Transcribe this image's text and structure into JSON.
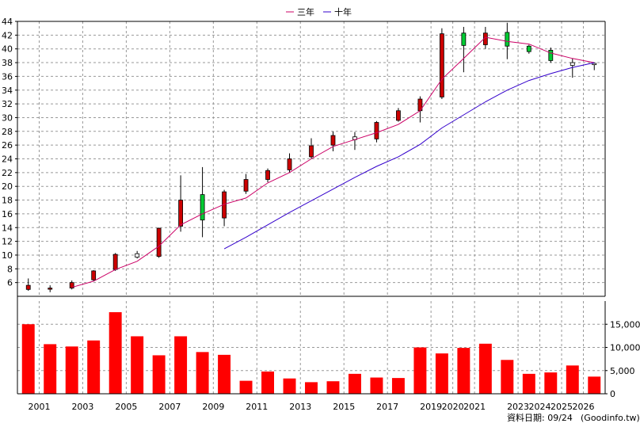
{
  "chart_data": {
    "type": "candlestick+bar",
    "x_years": [
      "2000",
      "2001",
      "2002",
      "2003",
      "2004",
      "2005",
      "2006",
      "2007",
      "2008",
      "2009",
      "2010",
      "2011",
      "2012",
      "2013",
      "2014",
      "2015",
      "2016",
      "2017",
      "2018",
      "2019",
      "2020",
      "2021",
      "2022",
      "2023",
      "2024",
      "2025",
      "2026"
    ],
    "x_tick_labels": [
      "2001",
      "2003",
      "2005",
      "2007",
      "2009",
      "2011",
      "2013",
      "2015",
      "2017",
      "2019",
      "2020",
      "2021",
      "2023",
      "2024",
      "2025",
      "2026"
    ],
    "price_axis": {
      "min": 4,
      "max": 44,
      "ticks": [
        6,
        8,
        10,
        12,
        14,
        16,
        18,
        20,
        22,
        24,
        26,
        28,
        30,
        32,
        34,
        36,
        38,
        40,
        42,
        44
      ],
      "side": "left"
    },
    "volume_axis": {
      "min": 0,
      "max": 20000,
      "ticks": [
        0,
        5000,
        10000,
        15000
      ],
      "tick_labels": [
        "0",
        "5,000",
        "10,000",
        "15,000"
      ],
      "side": "right"
    },
    "legend": {
      "position": "top-center",
      "items": [
        {
          "name": "三年",
          "color": "#cc0066"
        },
        {
          "name": "十年",
          "color": "#3300cc"
        }
      ]
    },
    "candles": [
      {
        "year": "2000",
        "open": 5.6,
        "close": 5.0,
        "high": 6.6,
        "low": 4.8,
        "color": "red"
      },
      {
        "year": "2001",
        "open": 5.2,
        "close": 5.1,
        "high": 5.6,
        "low": 4.6,
        "color": "red"
      },
      {
        "year": "2002",
        "open": 5.2,
        "close": 6.0,
        "high": 6.3,
        "low": 5.0,
        "color": "red"
      },
      {
        "year": "2003",
        "open": 6.4,
        "close": 7.7,
        "high": 7.8,
        "low": 6.2,
        "color": "red"
      },
      {
        "year": "2004",
        "open": 7.9,
        "close": 10.1,
        "high": 10.3,
        "low": 7.7,
        "color": "red"
      },
      {
        "year": "2005",
        "open": 9.7,
        "close": 10.2,
        "high": 10.6,
        "low": 9.5,
        "color": "white"
      },
      {
        "year": "2006",
        "open": 9.8,
        "close": 13.9,
        "high": 14.0,
        "low": 9.6,
        "color": "red"
      },
      {
        "year": "2007",
        "open": 14.2,
        "close": 18.0,
        "high": 21.6,
        "low": 13.4,
        "color": "red"
      },
      {
        "year": "2008",
        "open": 18.8,
        "close": 15.1,
        "high": 22.8,
        "low": 12.6,
        "color": "green"
      },
      {
        "year": "2009",
        "open": 15.4,
        "close": 19.2,
        "high": 19.5,
        "low": 14.2,
        "color": "red"
      },
      {
        "year": "2010",
        "open": 19.3,
        "close": 21.0,
        "high": 21.8,
        "low": 18.9,
        "color": "red"
      },
      {
        "year": "2011",
        "open": 21.0,
        "close": 22.3,
        "high": 22.6,
        "low": 20.6,
        "color": "red"
      },
      {
        "year": "2012",
        "open": 22.4,
        "close": 24.0,
        "high": 24.8,
        "low": 22.0,
        "color": "red"
      },
      {
        "year": "2013",
        "open": 24.3,
        "close": 25.9,
        "high": 27.0,
        "low": 24.0,
        "color": "red"
      },
      {
        "year": "2014",
        "open": 26.0,
        "close": 27.4,
        "high": 28.0,
        "low": 25.1,
        "color": "red"
      },
      {
        "year": "2015",
        "open": 26.8,
        "close": 27.2,
        "high": 27.9,
        "low": 25.3,
        "color": "white"
      },
      {
        "year": "2016",
        "open": 26.9,
        "close": 29.3,
        "high": 29.5,
        "low": 26.4,
        "color": "red"
      },
      {
        "year": "2017",
        "open": 29.6,
        "close": 31.0,
        "high": 31.4,
        "low": 29.4,
        "color": "red"
      },
      {
        "year": "2018",
        "open": 31.0,
        "close": 32.7,
        "high": 33.1,
        "low": 29.3,
        "color": "red"
      },
      {
        "year": "2019",
        "open": 33.0,
        "close": 42.2,
        "high": 43.0,
        "low": 32.7,
        "color": "red"
      },
      {
        "year": "2020",
        "open": 42.3,
        "close": 40.5,
        "high": 43.2,
        "low": 36.6,
        "color": "green"
      },
      {
        "year": "2021",
        "open": 40.6,
        "close": 42.3,
        "high": 43.2,
        "low": 40.0,
        "color": "red"
      },
      {
        "year": "2022",
        "open": 42.4,
        "close": 40.4,
        "high": 43.8,
        "low": 38.5,
        "color": "green"
      },
      {
        "year": "2023",
        "open": 40.4,
        "close": 39.6,
        "high": 40.6,
        "low": 39.3,
        "color": "green"
      },
      {
        "year": "2024",
        "open": 39.8,
        "close": 38.3,
        "high": 40.2,
        "low": 38.0,
        "color": "green"
      },
      {
        "year": "2025",
        "open": 38.0,
        "close": 37.6,
        "high": 38.6,
        "low": 35.8,
        "color": "white"
      },
      {
        "year": "2026",
        "open": 37.9,
        "close": 37.7,
        "high": 38.0,
        "low": 36.9,
        "color": "white"
      }
    ],
    "volumes": [
      {
        "year": "2000",
        "value": 15000
      },
      {
        "year": "2001",
        "value": 10700
      },
      {
        "year": "2002",
        "value": 10200
      },
      {
        "year": "2003",
        "value": 11500
      },
      {
        "year": "2004",
        "value": 17600
      },
      {
        "year": "2005",
        "value": 12400
      },
      {
        "year": "2006",
        "value": 8300
      },
      {
        "year": "2007",
        "value": 12400
      },
      {
        "year": "2008",
        "value": 9000
      },
      {
        "year": "2009",
        "value": 8400
      },
      {
        "year": "2010",
        "value": 2800
      },
      {
        "year": "2011",
        "value": 4800
      },
      {
        "year": "2012",
        "value": 3300
      },
      {
        "year": "2013",
        "value": 2500
      },
      {
        "year": "2014",
        "value": 2700
      },
      {
        "year": "2015",
        "value": 4300
      },
      {
        "year": "2016",
        "value": 3500
      },
      {
        "year": "2017",
        "value": 3400
      },
      {
        "year": "2018",
        "value": 10000
      },
      {
        "year": "2019",
        "value": 8700
      },
      {
        "year": "2020",
        "value": 9900
      },
      {
        "year": "2021",
        "value": 10800
      },
      {
        "year": "2022",
        "value": 7300
      },
      {
        "year": "2023",
        "value": 4300
      },
      {
        "year": "2024",
        "value": 4600
      },
      {
        "year": "2025",
        "value": 6100
      },
      {
        "year": "2026",
        "value": 3700
      }
    ],
    "ma_3year": {
      "name": "三年",
      "years": [
        "2002",
        "2003",
        "2004",
        "2005",
        "2006",
        "2007",
        "2008",
        "2009",
        "2010",
        "2011",
        "2012",
        "2013",
        "2014",
        "2015",
        "2016",
        "2017",
        "2018",
        "2019",
        "2020",
        "2021",
        "2022",
        "2023",
        "2024",
        "2025",
        "2026"
      ],
      "values": [
        5.3,
        6.2,
        7.9,
        9.1,
        11.3,
        14.4,
        16.0,
        17.4,
        18.3,
        20.5,
        22.0,
        24.0,
        25.8,
        26.8,
        27.8,
        29.0,
        31.0,
        35.6,
        38.6,
        41.7,
        41.1,
        40.7,
        39.4,
        38.6,
        38.0
      ]
    },
    "ma_10year": {
      "name": "十年",
      "years": [
        "2009",
        "2010",
        "2011",
        "2012",
        "2013",
        "2014",
        "2015",
        "2016",
        "2017",
        "2018",
        "2019",
        "2020",
        "2021",
        "2022",
        "2023",
        "2024",
        "2025",
        "2026"
      ],
      "values": [
        10.9,
        12.6,
        14.4,
        16.2,
        17.9,
        19.6,
        21.3,
        22.9,
        24.3,
        26.1,
        28.5,
        30.4,
        32.3,
        34.0,
        35.4,
        36.4,
        37.3,
        38.0
      ]
    }
  },
  "footer": {
    "date_label": "資料日期: 09/24",
    "site_label": "(Goodinfo.tw)"
  },
  "colors": {
    "up": "#cc0000",
    "down": "#00cc33",
    "flat": "#ffffff",
    "volume": "#ff0000",
    "grid": "#999999",
    "ma3": "#cc0066",
    "ma10": "#3300cc"
  }
}
